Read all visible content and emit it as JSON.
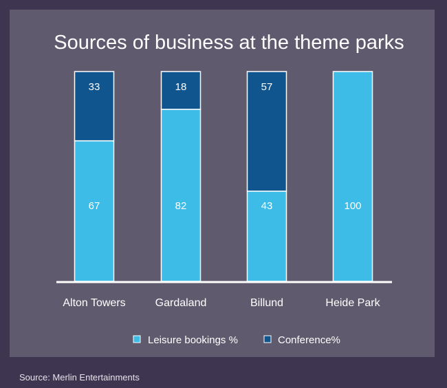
{
  "chart_data": {
    "type": "bar",
    "stacked": true,
    "title": "Sources of business at the theme parks",
    "categories": [
      "Alton Towers",
      "Gardaland",
      "Billund",
      "Heide Park"
    ],
    "series": [
      {
        "name": "Leisure bookings %",
        "values": [
          67,
          82,
          43,
          100
        ],
        "color": "#3dbce8"
      },
      {
        "name": "Conference%",
        "values": [
          33,
          18,
          57,
          null
        ],
        "color": "#11558e"
      }
    ],
    "value_labels": [
      {
        "leisure": "67",
        "conference": "33"
      },
      {
        "leisure": "82",
        "conference": "18"
      },
      {
        "leisure": "43",
        "conference": "57"
      },
      {
        "leisure": "100",
        "conference": ""
      }
    ],
    "ylim": [
      0,
      100
    ],
    "legend": "bottom",
    "grid": false
  },
  "source_text": "Source: Merlin Entertainments",
  "colors": {
    "background": "#3e3650",
    "panel": "#605a6e",
    "leisure": "#3dbce8",
    "conference": "#11558e"
  }
}
